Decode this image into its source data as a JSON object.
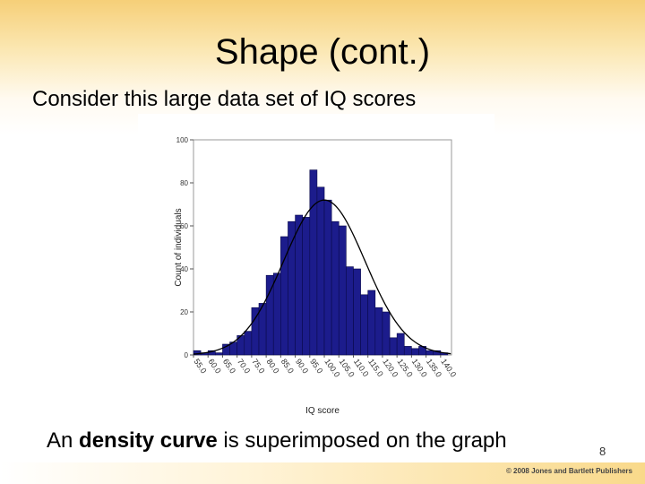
{
  "slide": {
    "title": "Shape (cont.)",
    "subtitle": "Consider this large data set of IQ scores",
    "caption_prefix": "An ",
    "caption_bold": "density curve",
    "caption_suffix": " is superimposed on the graph",
    "page_number": "8",
    "copyright": "© 2008 Jones and Bartlett Publishers"
  },
  "colors": {
    "bar_fill": "#1c1c8c",
    "bar_stroke": "#0a0a4a",
    "curve": "#000000",
    "axis": "#555555"
  },
  "chart_data": {
    "type": "bar",
    "xlabel": "IQ score",
    "ylabel": "Count of individuals",
    "ylim": [
      0,
      100
    ],
    "yticks": [
      0,
      20,
      40,
      60,
      80,
      100
    ],
    "xticks": [
      "55.0",
      "60.0",
      "65.0",
      "70.0",
      "75.0",
      "80.0",
      "85.0",
      "90.0",
      "95.0",
      "100.0",
      "105.0",
      "110.0",
      "115.0",
      "120.0",
      "125.0",
      "130.0",
      "135.0",
      "140.0"
    ],
    "bin_start": 55,
    "bin_end": 143.75,
    "bin_width": 2.5,
    "values": [
      2,
      1,
      2,
      1,
      5,
      6,
      9,
      11,
      22,
      24,
      37,
      38,
      55,
      62,
      65,
      64,
      86,
      78,
      72,
      62,
      60,
      41,
      40,
      28,
      30,
      22,
      20,
      8,
      10,
      4,
      3,
      4,
      2,
      2,
      1
    ],
    "curve": {
      "type": "normal",
      "mean": 100,
      "sd": 14,
      "peak": 72
    },
    "grid": false,
    "legend": "none"
  }
}
